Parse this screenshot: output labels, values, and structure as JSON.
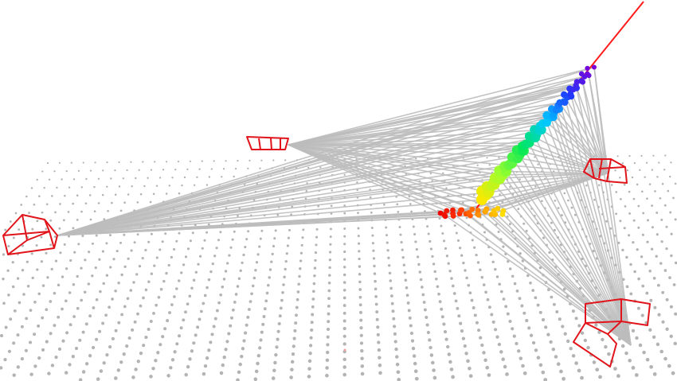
{
  "scene": {
    "background": "#ffffff",
    "colors": {
      "grid_points": "#b3b3b3",
      "rays": "#bdbdbd",
      "cameras": "#e0141a",
      "trajectory_line": "#ff1a1a"
    },
    "camera_count": 5,
    "trajectory_colormap": [
      "#7a00d9",
      "#1f3bff",
      "#00c8ff",
      "#00e85a",
      "#9cff2e",
      "#ffe600",
      "#ff9a00",
      "#ff3300",
      "#e60000"
    ]
  }
}
